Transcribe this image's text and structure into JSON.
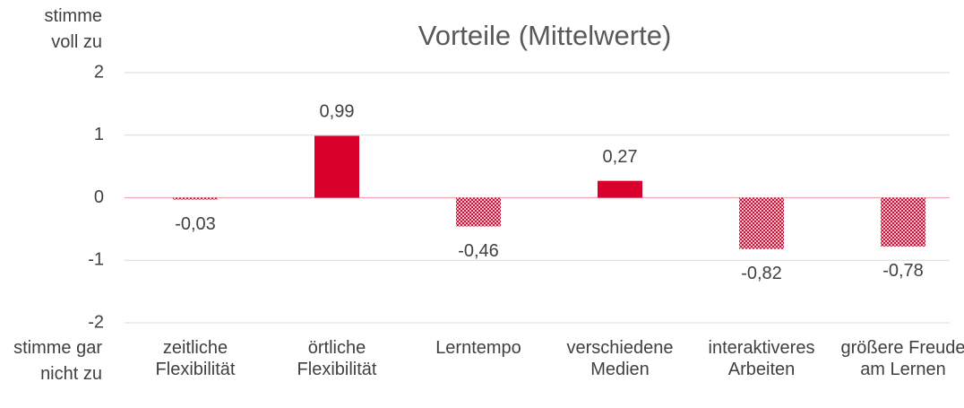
{
  "chart_data": {
    "type": "bar",
    "title": "Vorteile (Mittelwerte)",
    "y_top_label": [
      "stimme",
      "voll zu"
    ],
    "y_bottom_label": [
      "stimme gar",
      "nicht zu"
    ],
    "categories": [
      "zeitliche Flexibilität",
      "örtliche Flexibilität",
      "Lerntempo",
      "verschiedene Medien",
      "interaktiveres Arbeiten",
      "größere Freude am Lernen"
    ],
    "values": [
      -0.03,
      0.99,
      -0.46,
      0.27,
      -0.82,
      -0.78
    ],
    "value_labels": [
      "-0,03",
      "0,99",
      "-0,46",
      "0,27",
      "-0,82",
      "-0,78"
    ],
    "color": "#d9002b",
    "ylim": [
      -2,
      2
    ],
    "yticks": [
      -2,
      -1,
      0,
      1,
      2
    ],
    "grid": true
  }
}
